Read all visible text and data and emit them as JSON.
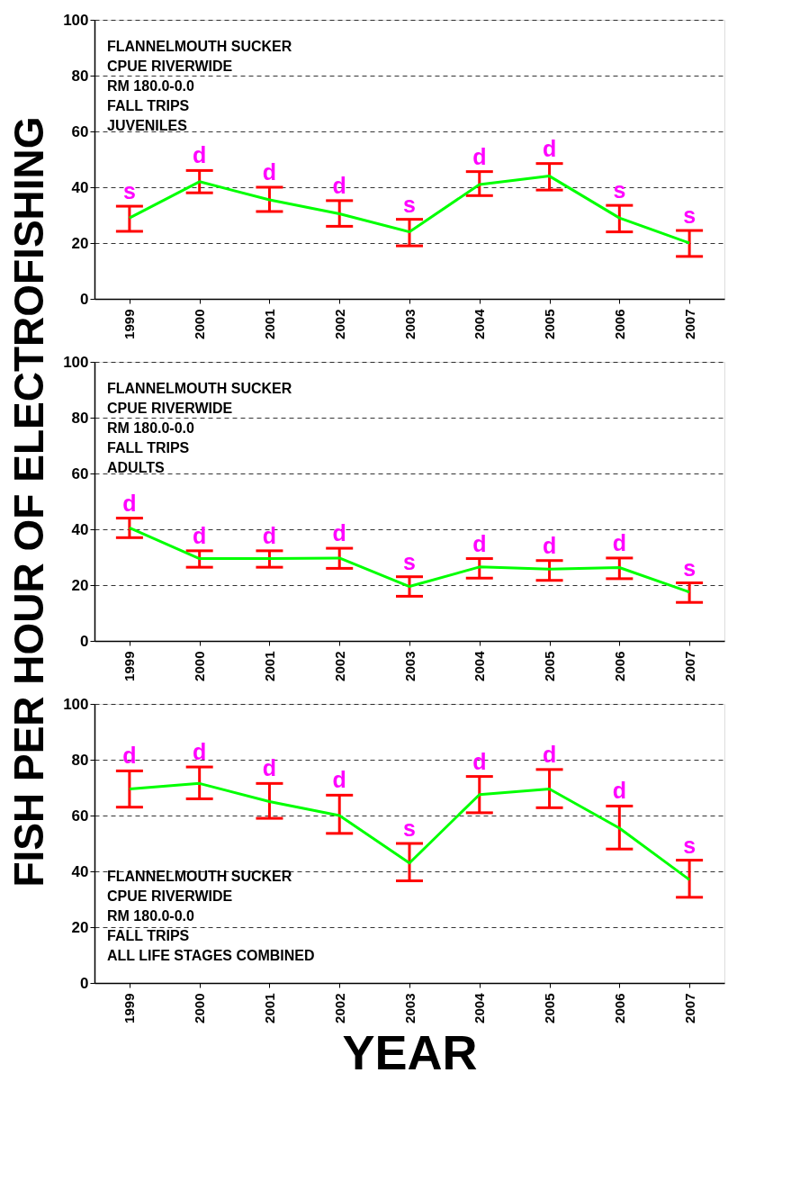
{
  "chart_data": [
    {
      "type": "line",
      "categories": [
        "1999",
        "2000",
        "2001",
        "2002",
        "2003",
        "2004",
        "2005",
        "2006",
        "2007"
      ],
      "series": [
        {
          "color": "#00ff00",
          "values": [
            29,
            42,
            35.5,
            30.5,
            24,
            41,
            44,
            29,
            20
          ],
          "errors": [
            [
              24.2,
              33.2
            ],
            [
              38,
              46
            ],
            [
              31.3,
              40
            ],
            [
              26,
              35.2
            ],
            [
              19,
              28.5
            ],
            [
              37,
              45.6
            ],
            [
              39,
              48.5
            ],
            [
              24,
              33.5
            ],
            [
              15.2,
              24.5
            ]
          ]
        }
      ],
      "ylim": [
        0,
        100
      ],
      "yticks": [
        0,
        20,
        40,
        60,
        80,
        100
      ],
      "grid": "y",
      "legend": false,
      "marker": "none",
      "line_style": "solid",
      "annotations": [
        "FLANNELMOUTH SUCKER",
        "CPUE RIVERWIDE",
        "RM 180.0-0.0",
        "FALL TRIPS",
        "JUVENILES",
        {
          "text": "s",
          "x": "1999",
          "y": 33.2
        },
        {
          "text": "d",
          "x": "2000",
          "y": 46
        },
        {
          "text": "d",
          "x": "2001",
          "y": 40
        },
        {
          "text": "d",
          "x": "2002",
          "y": 35.2
        },
        {
          "text": "s",
          "x": "2003",
          "y": 28.5
        },
        {
          "text": "d",
          "x": "2004",
          "y": 45.6
        },
        {
          "text": "d",
          "x": "2005",
          "y": 48.5
        },
        {
          "text": "s",
          "x": "2006",
          "y": 33.5
        },
        {
          "text": "s",
          "x": "2007",
          "y": 24.5
        }
      ]
    },
    {
      "type": "line",
      "categories": [
        "1999",
        "2000",
        "2001",
        "2002",
        "2003",
        "2004",
        "2005",
        "2006",
        "2007"
      ],
      "ylabel": "FISH PER HOUR OF ELECTROFISHING",
      "series": [
        {
          "color": "#00ff00",
          "values": [
            40.5,
            29.5,
            29.5,
            29.7,
            19.5,
            26.5,
            25.7,
            26.3,
            17.5
          ],
          "errors": [
            [
              37,
              44
            ],
            [
              26.4,
              32.3
            ],
            [
              26.4,
              32.3
            ],
            [
              26,
              33.2
            ],
            [
              16,
              23
            ],
            [
              22.5,
              29.5
            ],
            [
              21.7,
              28.8
            ],
            [
              22.3,
              29.7
            ],
            [
              13.8,
              20.8
            ]
          ]
        }
      ],
      "ylim": [
        0,
        100
      ],
      "yticks": [
        0,
        20,
        40,
        60,
        80,
        100
      ],
      "grid": "y",
      "legend": false,
      "marker": "none",
      "line_style": "solid",
      "annotations": [
        "FLANNELMOUTH SUCKER",
        "CPUE RIVERWIDE",
        "RM 180.0-0.0",
        "FALL TRIPS",
        "ADULTS",
        {
          "text": "d",
          "x": "1999",
          "y": 44
        },
        {
          "text": "d",
          "x": "2000",
          "y": 32.3
        },
        {
          "text": "d",
          "x": "2001",
          "y": 32.3
        },
        {
          "text": "d",
          "x": "2002",
          "y": 33.2
        },
        {
          "text": "s",
          "x": "2003",
          "y": 23
        },
        {
          "text": "d",
          "x": "2004",
          "y": 29.5
        },
        {
          "text": "d",
          "x": "2005",
          "y": 28.8
        },
        {
          "text": "d",
          "x": "2006",
          "y": 29.7
        },
        {
          "text": "s",
          "x": "2007",
          "y": 20.8
        }
      ]
    },
    {
      "type": "line",
      "categories": [
        "1999",
        "2000",
        "2001",
        "2002",
        "2003",
        "2004",
        "2005",
        "2006",
        "2007"
      ],
      "xlabel": "YEAR",
      "series": [
        {
          "color": "#00ff00",
          "values": [
            69.5,
            71.5,
            65,
            60,
            43,
            67.5,
            69.5,
            55.5,
            37
          ],
          "errors": [
            [
              63,
              76
            ],
            [
              66,
              77.4
            ],
            [
              59,
              71.5
            ],
            [
              53.6,
              67.3
            ],
            [
              36.6,
              50
            ],
            [
              61,
              74
            ],
            [
              62.8,
              76.5
            ],
            [
              48,
              63.4
            ],
            [
              30.7,
              44
            ]
          ]
        }
      ],
      "ylim": [
        0,
        100
      ],
      "yticks": [
        0,
        20,
        40,
        60,
        80,
        100
      ],
      "grid": "y",
      "legend": false,
      "marker": "none",
      "line_style": "solid",
      "annotations": [
        "FLANNELMOUTH SUCKER",
        "CPUE RIVERWIDE",
        "RM 180.0-0.0",
        "FALL TRIPS",
        "ALL LIFE STAGES COMBINED",
        {
          "text": "d",
          "x": "1999",
          "y": 76
        },
        {
          "text": "d",
          "x": "2000",
          "y": 77.4
        },
        {
          "text": "d",
          "x": "2001",
          "y": 71.5
        },
        {
          "text": "d",
          "x": "2002",
          "y": 67.3
        },
        {
          "text": "s",
          "x": "2003",
          "y": 50
        },
        {
          "text": "d",
          "x": "2004",
          "y": 74
        },
        {
          "text": "d",
          "x": "2005",
          "y": 76.5
        },
        {
          "text": "d",
          "x": "2006",
          "y": 63.4
        },
        {
          "text": "s",
          "x": "2007",
          "y": 44
        }
      ]
    }
  ]
}
